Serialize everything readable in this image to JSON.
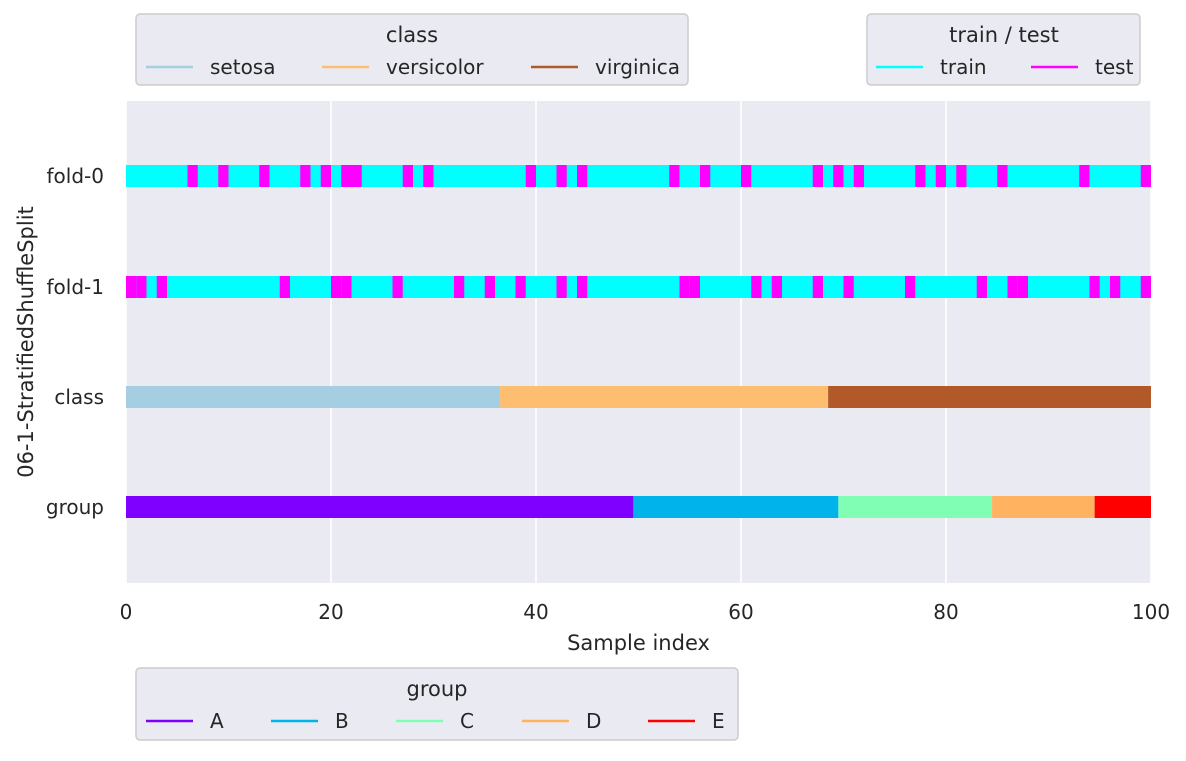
{
  "chart_data": {
    "type": "bar",
    "title": "",
    "xlabel": "Sample index",
    "ylabel": "06-1-StratifiedShuffleSplit",
    "xlim": [
      0,
      100
    ],
    "xticks": [
      "0",
      "20",
      "40",
      "60",
      "80",
      "100"
    ],
    "grid": true,
    "rows": [
      {
        "label": "fold-0",
        "kind": "split",
        "test_indices": [
          6,
          9,
          13,
          17,
          19,
          21,
          22,
          27,
          29,
          39,
          42,
          44,
          53,
          56,
          60,
          67,
          69,
          71,
          77,
          79,
          81,
          85,
          93,
          99
        ]
      },
      {
        "label": "fold-1",
        "kind": "split",
        "test_indices": [
          0,
          1,
          3,
          15,
          20,
          21,
          26,
          32,
          35,
          38,
          42,
          44,
          54,
          55,
          61,
          63,
          67,
          70,
          76,
          83,
          86,
          87,
          94,
          96,
          99
        ]
      },
      {
        "label": "class",
        "kind": "segments",
        "segments": [
          {
            "name": "setosa",
            "start": 0,
            "end": 36.5
          },
          {
            "name": "versicolor",
            "start": 36.5,
            "end": 68.5
          },
          {
            "name": "virginica",
            "start": 68.5,
            "end": 100
          }
        ]
      },
      {
        "label": "group",
        "kind": "segments",
        "segments": [
          {
            "name": "A",
            "start": 0,
            "end": 49.5
          },
          {
            "name": "B",
            "start": 49.5,
            "end": 69.5
          },
          {
            "name": "C",
            "start": 69.5,
            "end": 84.5
          },
          {
            "name": "D",
            "start": 84.5,
            "end": 94.5
          },
          {
            "name": "E",
            "start": 94.5,
            "end": 100
          }
        ]
      }
    ],
    "legends": [
      {
        "id": "class",
        "title": "class",
        "placement": "top-left",
        "items": [
          {
            "label": "setosa",
            "color": "#a6cee3"
          },
          {
            "label": "versicolor",
            "color": "#fdbf6f"
          },
          {
            "label": "virginica",
            "color": "#b15928"
          }
        ]
      },
      {
        "id": "traintest",
        "title": "train / test",
        "placement": "top-right",
        "items": [
          {
            "label": "train",
            "color": "#00ffff"
          },
          {
            "label": "test",
            "color": "#ff00ff"
          }
        ]
      },
      {
        "id": "group",
        "title": "group",
        "placement": "bottom-left",
        "items": [
          {
            "label": "A",
            "color": "#8000ff"
          },
          {
            "label": "B",
            "color": "#00b4eb"
          },
          {
            "label": "C",
            "color": "#80ffb4"
          },
          {
            "label": "D",
            "color": "#ffb360"
          },
          {
            "label": "E",
            "color": "#ff0000"
          }
        ]
      }
    ],
    "colors": {
      "train": "#00ffff",
      "test": "#ff00ff",
      "plot_background": "#eaeaf2",
      "grid": "#ffffff"
    }
  }
}
